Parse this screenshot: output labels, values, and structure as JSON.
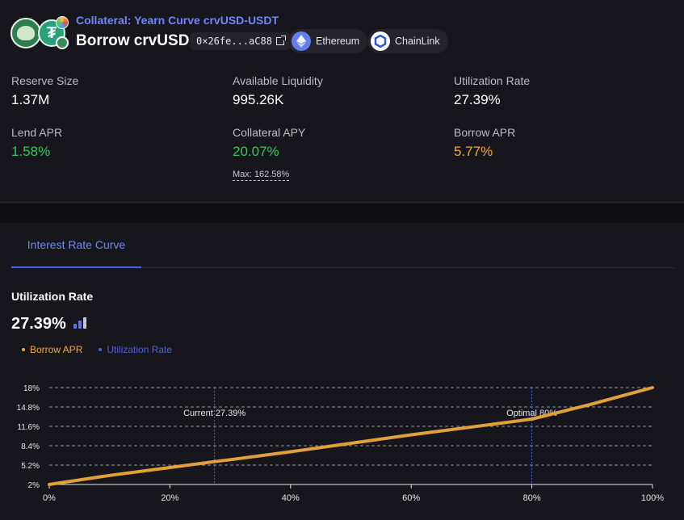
{
  "header": {
    "collateral_label": "Collateral: Yearn Curve crvUSD-USDT",
    "market_title": "Borrow crvUSD",
    "address": "0×26fe...aC88",
    "network": "Ethereum",
    "oracle": "ChainLink"
  },
  "stats": {
    "reserve_size": {
      "label": "Reserve Size",
      "value": "1.37M"
    },
    "available_liquidity": {
      "label": "Available Liquidity",
      "value": "995.26K"
    },
    "utilization_rate": {
      "label": "Utilization Rate",
      "value": "27.39%"
    },
    "lend_apr": {
      "label": "Lend APR",
      "value": "1.58%"
    },
    "collateral_apy": {
      "label": "Collateral APY",
      "value": "20.07%",
      "max_note": "Max: 162.58%"
    },
    "borrow_apr": {
      "label": "Borrow APR",
      "value": "5.77%"
    }
  },
  "tabs": [
    {
      "label": "Interest Rate Curve",
      "active": true
    }
  ],
  "curve_panel": {
    "title": "Utilization Rate",
    "value": "27.39%",
    "legend": [
      {
        "name": "Borrow APR",
        "color": "#f2a93b"
      },
      {
        "name": "Utilization Rate",
        "color": "#4a63e8"
      }
    ]
  },
  "colors": {
    "accent": "#6f86ff",
    "positive": "#34c759",
    "warning": "#f2a93b",
    "curve": "#e0a03a",
    "marker": "#4a63e8"
  },
  "chart_data": {
    "type": "line",
    "title": "",
    "xlabel": "",
    "ylabel": "",
    "x_ticks": [
      "0%",
      "20%",
      "40%",
      "60%",
      "80%",
      "100%"
    ],
    "y_ticks": [
      "2%",
      "5.2%",
      "8.4%",
      "11.6%",
      "14.8%",
      "18%"
    ],
    "x_range": [
      0,
      100
    ],
    "y_range": [
      2,
      18
    ],
    "grid": "horizontal-dashed",
    "series": [
      {
        "name": "Borrow APR",
        "x": [
          0,
          10,
          20,
          27.39,
          30,
          40,
          50,
          60,
          70,
          80,
          90,
          100
        ],
        "y": [
          2,
          3.5,
          4.8,
          5.77,
          6.1,
          7.4,
          8.8,
          10.2,
          11.5,
          12.8,
          15.3,
          18
        ]
      }
    ],
    "markers": [
      {
        "label": "Current 27.39%",
        "x": 27.39
      },
      {
        "label": "Optimal 80%",
        "x": 80
      }
    ]
  }
}
